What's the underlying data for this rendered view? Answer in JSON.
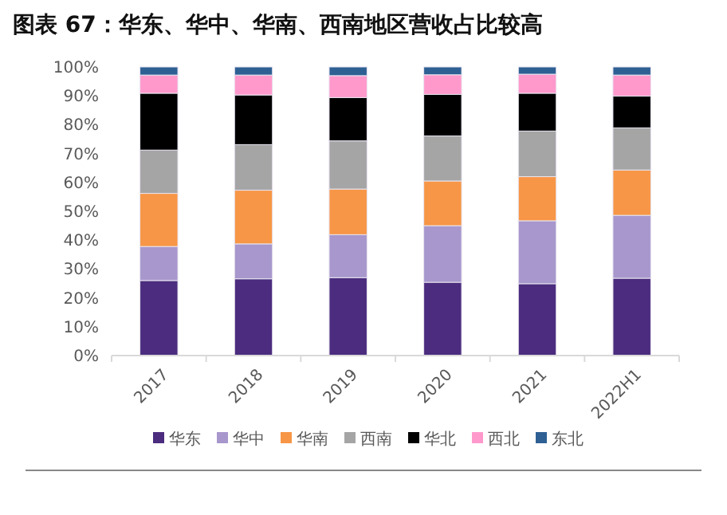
{
  "chart_data": {
    "type": "bar",
    "title": "图表 67：华东、华中、华南、西南地区营收占比较高",
    "stacked": true,
    "legend": "bottom",
    "categories": [
      "2017",
      "2018",
      "2019",
      "2020",
      "2021",
      "2022H1"
    ],
    "series": [
      {
        "name": "华东",
        "color": "#4b2c7e",
        "values": [
          26.0,
          26.6,
          27.0,
          25.4,
          24.9,
          26.8
        ]
      },
      {
        "name": "华中",
        "color": "#a797cc",
        "values": [
          11.8,
          12.1,
          14.9,
          19.6,
          21.8,
          21.8
        ]
      },
      {
        "name": "华南",
        "color": "#f79646",
        "values": [
          18.4,
          18.6,
          15.8,
          15.5,
          15.3,
          15.7
        ]
      },
      {
        "name": "西南",
        "color": "#a5a5a5",
        "values": [
          15.0,
          15.8,
          16.7,
          15.6,
          15.8,
          14.6
        ]
      },
      {
        "name": "华北",
        "color": "#000000",
        "values": [
          19.7,
          17.2,
          15.0,
          14.4,
          13.1,
          11.0
        ]
      },
      {
        "name": "西北",
        "color": "#ff99cc",
        "values": [
          6.3,
          6.9,
          7.6,
          6.8,
          6.6,
          7.3
        ]
      },
      {
        "name": "东北",
        "color": "#2e6094",
        "values": [
          2.8,
          2.8,
          3.0,
          2.7,
          2.5,
          2.8
        ]
      }
    ],
    "ylim": [
      0,
      100
    ],
    "yticks": [
      {
        "value": 0,
        "label": "0%"
      },
      {
        "value": 10,
        "label": "10%"
      },
      {
        "value": 20,
        "label": "20%"
      },
      {
        "value": 30,
        "label": "30%"
      },
      {
        "value": 40,
        "label": "40%"
      },
      {
        "value": 50,
        "label": "50%"
      },
      {
        "value": 60,
        "label": "60%"
      },
      {
        "value": 70,
        "label": "70%"
      },
      {
        "value": 80,
        "label": "80%"
      },
      {
        "value": 90,
        "label": "90%"
      },
      {
        "value": 100,
        "label": "100%"
      }
    ]
  }
}
